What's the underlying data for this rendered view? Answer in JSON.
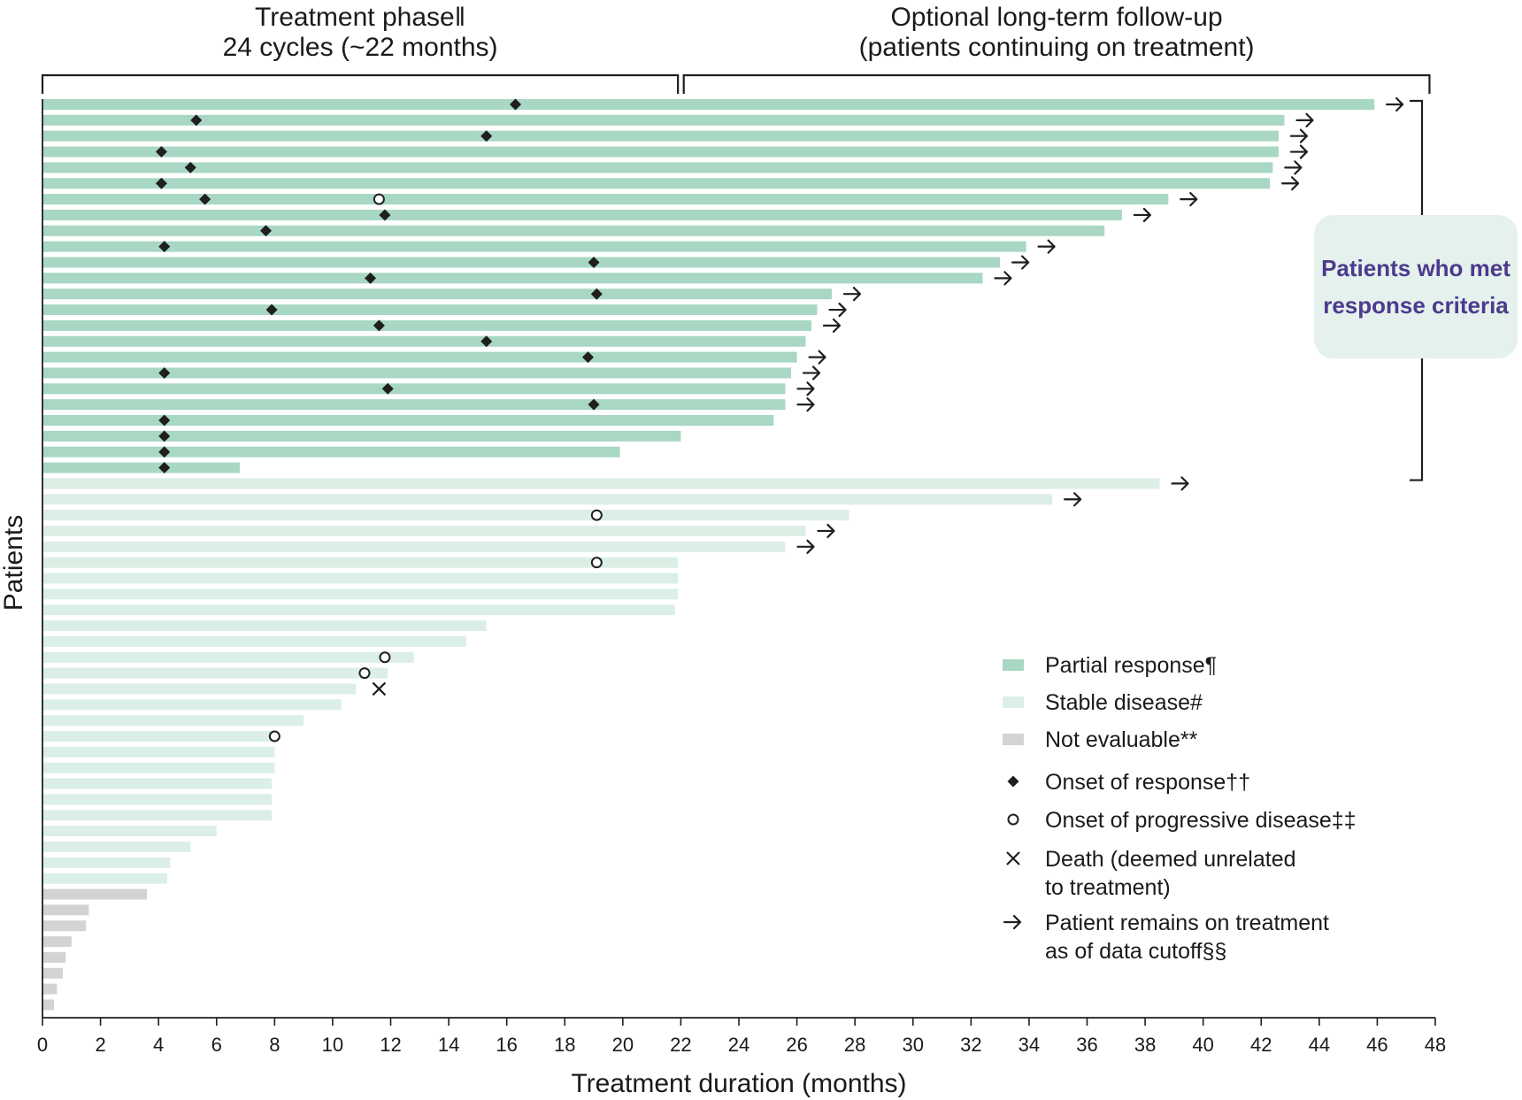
{
  "chart_data": {
    "type": "swimmer",
    "ylabel": "Patients",
    "xlabel": "Treatment duration (months)",
    "xlim": [
      0,
      48
    ],
    "xticks": [
      0,
      2,
      4,
      6,
      8,
      10,
      12,
      14,
      16,
      18,
      20,
      22,
      24,
      26,
      28,
      30,
      32,
      34,
      36,
      38,
      40,
      42,
      44,
      46,
      48
    ],
    "phases": [
      {
        "label_line1": "Treatment phase‖",
        "label_line2": "24 cycles (~22 months)",
        "start": 0,
        "end": 21.9
      },
      {
        "label_line1": "Optional long-term follow-up",
        "label_line2": "(patients continuing on treatment)",
        "start": 22.1,
        "end": 47.8
      }
    ],
    "response_callout": {
      "text": "Patients who met response criteria"
    },
    "categories": {
      "PR": "Partial response",
      "SD": "Stable disease",
      "NE": "Not evaluable"
    },
    "colors": {
      "PR": "#a8d7c3",
      "SD": "#dcefe6",
      "NE": "#d3d3d5",
      "marker": "#1f1f1f",
      "callout_text": "#4d3a8e",
      "callout_bg": "#e4f1ec"
    },
    "patients": [
      {
        "category": "PR",
        "duration": 45.9,
        "response": 16.3,
        "ongoing": true
      },
      {
        "category": "PR",
        "duration": 42.8,
        "response": 5.3,
        "ongoing": true
      },
      {
        "category": "PR",
        "duration": 42.6,
        "response": 15.3,
        "ongoing": true
      },
      {
        "category": "PR",
        "duration": 42.6,
        "response": 4.1,
        "ongoing": true
      },
      {
        "category": "PR",
        "duration": 42.4,
        "response": 5.1,
        "ongoing": true
      },
      {
        "category": "PR",
        "duration": 42.3,
        "response": 4.1,
        "ongoing": true
      },
      {
        "category": "PR",
        "duration": 38.8,
        "response": 5.6,
        "progression": 11.6,
        "ongoing": true
      },
      {
        "category": "PR",
        "duration": 37.2,
        "response": 11.8,
        "ongoing": true
      },
      {
        "category": "PR",
        "duration": 36.6,
        "response": 7.7
      },
      {
        "category": "PR",
        "duration": 33.9,
        "response": 4.2,
        "ongoing": true
      },
      {
        "category": "PR",
        "duration": 33.0,
        "response": 19.0,
        "ongoing": true
      },
      {
        "category": "PR",
        "duration": 32.4,
        "response": 11.3,
        "ongoing": true
      },
      {
        "category": "PR",
        "duration": 27.2,
        "response": 19.1,
        "ongoing": true
      },
      {
        "category": "PR",
        "duration": 26.7,
        "response": 7.9,
        "ongoing": true
      },
      {
        "category": "PR",
        "duration": 26.5,
        "response": 11.6,
        "ongoing": true
      },
      {
        "category": "PR",
        "duration": 26.3,
        "response": 15.3
      },
      {
        "category": "PR",
        "duration": 26.0,
        "response": 18.8,
        "ongoing": true
      },
      {
        "category": "PR",
        "duration": 25.8,
        "response": 4.2,
        "ongoing": true
      },
      {
        "category": "PR",
        "duration": 25.6,
        "response": 11.9,
        "ongoing": true
      },
      {
        "category": "PR",
        "duration": 25.6,
        "response": 19.0,
        "ongoing": true
      },
      {
        "category": "PR",
        "duration": 25.2,
        "response": 4.2
      },
      {
        "category": "PR",
        "duration": 22.0,
        "response": 4.2
      },
      {
        "category": "PR",
        "duration": 19.9,
        "response": 4.2
      },
      {
        "category": "PR",
        "duration": 6.8,
        "response": 4.2
      },
      {
        "category": "SD",
        "duration": 38.5,
        "ongoing": true
      },
      {
        "category": "SD",
        "duration": 34.8,
        "ongoing": true
      },
      {
        "category": "SD",
        "duration": 27.8,
        "progression": 19.1
      },
      {
        "category": "SD",
        "duration": 26.3,
        "ongoing": true
      },
      {
        "category": "SD",
        "duration": 25.6,
        "ongoing": true
      },
      {
        "category": "SD",
        "duration": 21.9,
        "progression": 19.1
      },
      {
        "category": "SD",
        "duration": 21.9
      },
      {
        "category": "SD",
        "duration": 21.9
      },
      {
        "category": "SD",
        "duration": 21.8
      },
      {
        "category": "SD",
        "duration": 15.3
      },
      {
        "category": "SD",
        "duration": 14.6
      },
      {
        "category": "SD",
        "duration": 12.8,
        "progression": 11.8
      },
      {
        "category": "SD",
        "duration": 11.9,
        "progression": 11.1
      },
      {
        "category": "SD",
        "duration": 10.8,
        "death": 11.6
      },
      {
        "category": "SD",
        "duration": 10.3
      },
      {
        "category": "SD",
        "duration": 9.0
      },
      {
        "category": "SD",
        "duration": 8.0,
        "progression": 8.0
      },
      {
        "category": "SD",
        "duration": 8.0
      },
      {
        "category": "SD",
        "duration": 8.0
      },
      {
        "category": "SD",
        "duration": 7.9
      },
      {
        "category": "SD",
        "duration": 7.9
      },
      {
        "category": "SD",
        "duration": 7.9
      },
      {
        "category": "SD",
        "duration": 6.0
      },
      {
        "category": "SD",
        "duration": 5.1
      },
      {
        "category": "SD",
        "duration": 4.4
      },
      {
        "category": "SD",
        "duration": 4.3
      },
      {
        "category": "NE",
        "duration": 3.6
      },
      {
        "category": "NE",
        "duration": 1.6
      },
      {
        "category": "NE",
        "duration": 1.5
      },
      {
        "category": "NE",
        "duration": 1.0
      },
      {
        "category": "NE",
        "duration": 0.8
      },
      {
        "category": "NE",
        "duration": 0.7
      },
      {
        "category": "NE",
        "duration": 0.5
      },
      {
        "category": "NE",
        "duration": 0.4
      }
    ],
    "legend": [
      {
        "key": "PR",
        "symbol": "bar",
        "line1": "Partial response¶"
      },
      {
        "key": "SD",
        "symbol": "bar",
        "line1": "Stable disease#"
      },
      {
        "key": "NE",
        "symbol": "bar",
        "line1": "Not evaluable**"
      },
      {
        "key": "response",
        "symbol": "diamond",
        "line1": "Onset of response††"
      },
      {
        "key": "progression",
        "symbol": "circle",
        "line1": "Onset of progressive disease‡‡"
      },
      {
        "key": "death",
        "symbol": "cross",
        "line1": "Death (deemed unrelated",
        "line2": "to treatment)"
      },
      {
        "key": "ongoing",
        "symbol": "arrow",
        "line1": "Patient remains on treatment",
        "line2": "as of data cutoff§§"
      }
    ]
  }
}
